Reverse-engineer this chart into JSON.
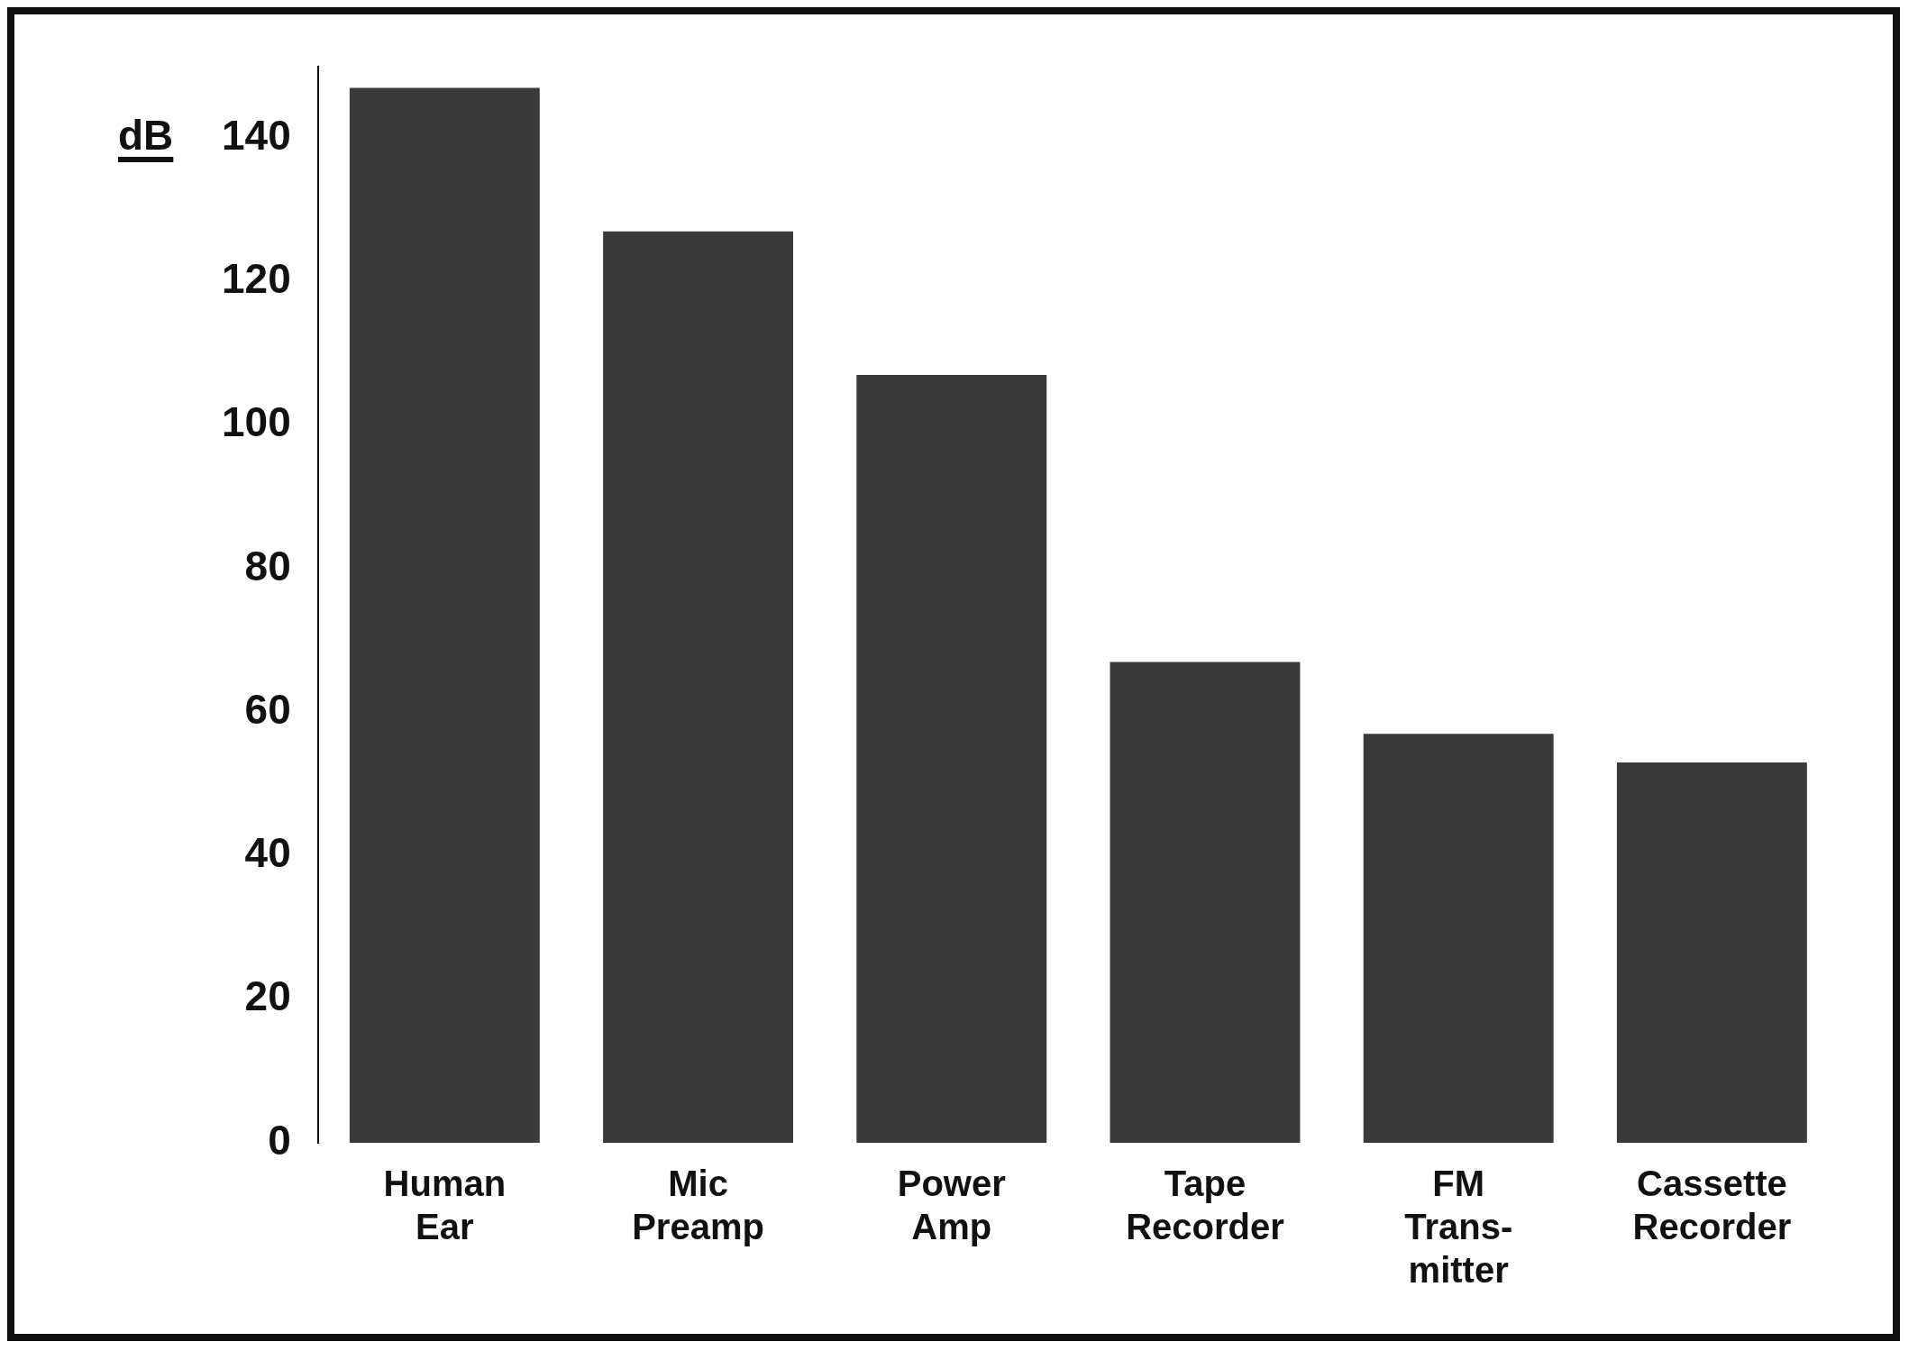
{
  "chart_data": {
    "type": "bar",
    "ylabel": "dB",
    "categories": [
      "Human Ear",
      "Mic Preamp",
      "Power Amp",
      "Tape Recorder",
      "FM Trans- mitter",
      "Cassette Recorder"
    ],
    "values": [
      147,
      127,
      107,
      67,
      57,
      53
    ],
    "color": "#3a3a3a",
    "ylim": [
      0,
      150
    ],
    "yticks": [
      0,
      20,
      40,
      60,
      80,
      100,
      120,
      140
    ],
    "grid": false,
    "legend": false
  }
}
